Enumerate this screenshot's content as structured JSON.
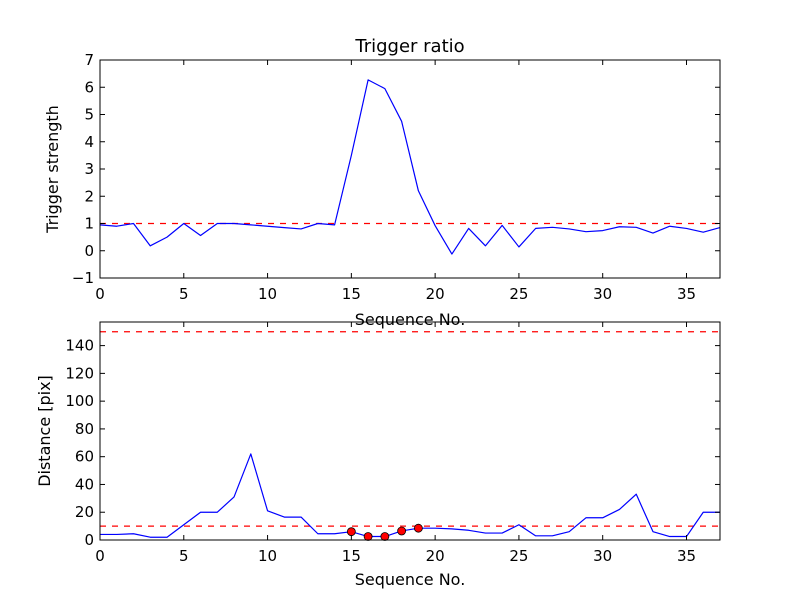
{
  "chart_data": [
    {
      "type": "line",
      "title": "Trigger ratio",
      "xlabel": "Sequence No.",
      "ylabel": "Trigger strength",
      "xlim": [
        0,
        37
      ],
      "ylim": [
        -1,
        7
      ],
      "xticks": [
        0,
        5,
        10,
        15,
        20,
        25,
        30,
        35
      ],
      "yticks": [
        -1,
        0,
        1,
        2,
        3,
        4,
        5,
        6,
        7
      ],
      "grid": false,
      "colors": {
        "line": "#0000ff",
        "threshold": "#ff0000"
      },
      "thresholds": [
        1.0
      ],
      "series": [
        {
          "x": [
            0,
            1,
            2,
            3,
            4,
            5,
            6,
            7,
            8,
            9,
            10,
            11,
            12,
            13,
            14,
            15,
            16,
            17,
            18,
            19,
            20,
            21,
            22,
            23,
            24,
            25,
            26,
            27,
            28,
            29,
            30,
            31,
            32,
            33,
            34,
            35,
            36,
            37
          ],
          "values": [
            0.95,
            0.9,
            1.0,
            0.18,
            0.5,
            1.0,
            0.56,
            1.0,
            1.0,
            0.95,
            0.9,
            0.85,
            0.8,
            1.0,
            0.95,
            3.5,
            6.27,
            5.95,
            4.75,
            2.2,
            0.92,
            -0.12,
            0.82,
            0.18,
            0.93,
            0.14,
            0.82,
            0.86,
            0.8,
            0.7,
            0.74,
            0.88,
            0.86,
            0.65,
            0.9,
            0.82,
            0.68,
            0.85
          ]
        }
      ]
    },
    {
      "type": "line",
      "title": "",
      "xlabel": "Sequence No.",
      "ylabel": "Distance [pix]",
      "xlim": [
        0,
        37
      ],
      "ylim": [
        0,
        157
      ],
      "xticks": [
        0,
        5,
        10,
        15,
        20,
        25,
        30,
        35
      ],
      "yticks": [
        0,
        20,
        40,
        60,
        80,
        100,
        120,
        140
      ],
      "grid": false,
      "colors": {
        "line": "#0000ff",
        "threshold": "#ff0000",
        "marker": "#ff0000"
      },
      "thresholds": [
        10,
        150
      ],
      "series": [
        {
          "x": [
            0,
            1,
            2,
            3,
            4,
            5,
            6,
            7,
            8,
            9,
            10,
            11,
            12,
            13,
            14,
            15,
            16,
            17,
            18,
            19,
            20,
            21,
            22,
            23,
            24,
            25,
            26,
            27,
            28,
            29,
            30,
            31,
            32,
            33,
            34,
            35,
            36,
            37
          ],
          "values": [
            4,
            4,
            4.5,
            2,
            2,
            11,
            20,
            20,
            31,
            62,
            21,
            16.5,
            16.5,
            4.5,
            4.5,
            6,
            2.5,
            2.5,
            6.5,
            8.5,
            8.5,
            8,
            7,
            5,
            5,
            11,
            3,
            3,
            6,
            16,
            16,
            22,
            33,
            6,
            2.5,
            2.5,
            20,
            20
          ]
        }
      ],
      "markers": {
        "x": [
          15,
          16,
          17,
          18,
          19
        ],
        "values": [
          6,
          2.5,
          2.5,
          6.5,
          8.5
        ]
      }
    }
  ]
}
